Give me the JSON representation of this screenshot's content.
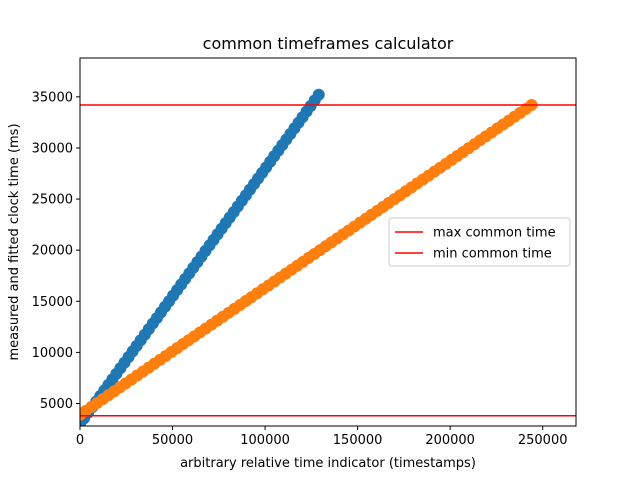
{
  "chart_data": {
    "type": "scatter",
    "title": "common timeframes calculator",
    "xlabel": "arbitrary relative time indicator (timestamps)",
    "ylabel": "measured and fitted clock time (ms)",
    "xlim": [
      0,
      268000
    ],
    "ylim": [
      2800,
      38800
    ],
    "xticks": [
      0,
      50000,
      100000,
      150000,
      200000,
      250000
    ],
    "yticks": [
      5000,
      10000,
      15000,
      20000,
      25000,
      30000,
      35000
    ],
    "grid": false,
    "legend_placement": "center-right",
    "series": [
      {
        "color": "#1f77b4",
        "x_start": 0,
        "y_start": 3000,
        "x_end": 129000,
        "y_end": 35200,
        "point_count": 60
      },
      {
        "color": "#ff7f0e",
        "x_start": 0,
        "y_start": 3900,
        "x_end": 244000,
        "y_end": 34200,
        "point_count": 80
      }
    ],
    "hlines": [
      {
        "name": "max common time",
        "y": 34200,
        "color": "#ff0000"
      },
      {
        "name": "min common time",
        "y": 3800,
        "color": "#ff0000"
      }
    ]
  }
}
